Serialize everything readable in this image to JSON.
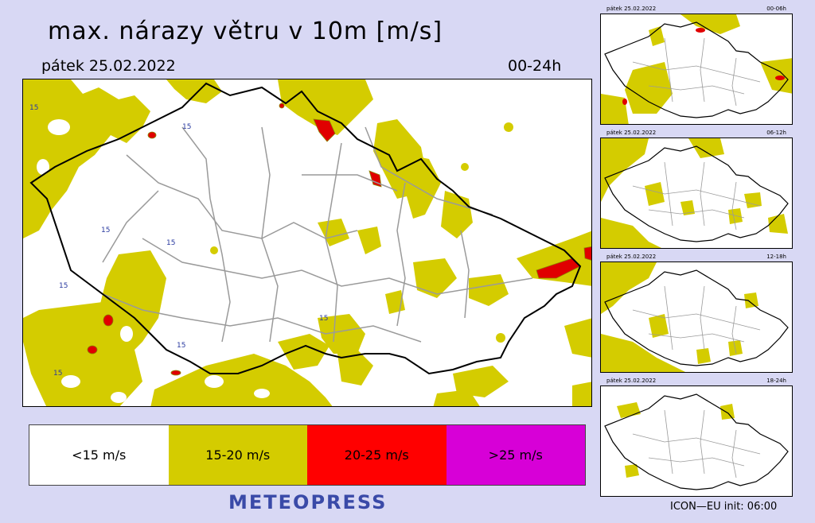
{
  "title": "max. nárazy větru v 10m [m/s]",
  "date": "pátek 25.02.2022",
  "period": "00-24h",
  "contour_label": "15",
  "legend": [
    {
      "label": "<15 m/s",
      "color": "#ffffff"
    },
    {
      "label": "15-20 m/s",
      "color": "#d4cc00"
    },
    {
      "label": "20-25 m/s",
      "color": "#ff0000"
    },
    {
      "label": ">25 m/s",
      "color": "#d700d7"
    }
  ],
  "brand": "METEOPRESS",
  "model_info": "ICON—EU  init:  06:00",
  "thumbnails": [
    {
      "date": "pátek 25.02.2022",
      "period": "00-06h"
    },
    {
      "date": "pátek 25.02.2022",
      "period": "06-12h"
    },
    {
      "date": "pátek 25.02.2022",
      "period": "12-18h"
    },
    {
      "date": "pátek 25.02.2022",
      "period": "18-24h"
    }
  ],
  "colors": {
    "background": "#d8d8f4",
    "gust_15_20": "#d4cc00",
    "gust_20_25": "#e00000",
    "border_country": "#000000",
    "border_regions": "#9a9a9a",
    "brand": "#3a4aa8"
  }
}
